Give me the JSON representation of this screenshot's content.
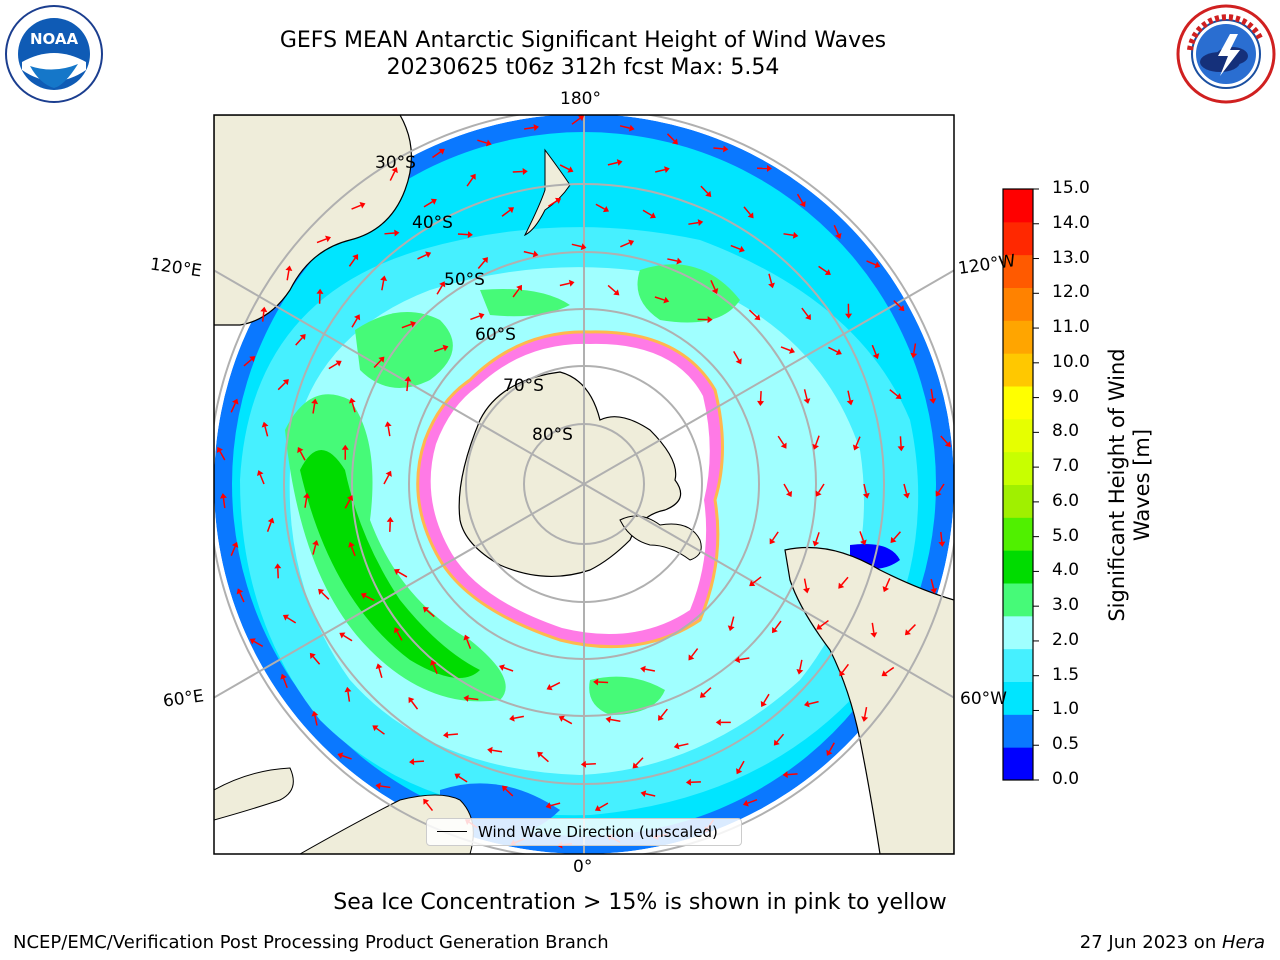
{
  "header": {
    "title_line1": "GEFS MEAN Antarctic Significant Height of Wind Waves",
    "title_line2": "20230625 t06z 312h fcst   Max: 5.54"
  },
  "logos": {
    "left": {
      "name": "noaa-logo",
      "text": "NOAA",
      "ring_text": "NATIONAL OCEANIC AND ATMOSPHERIC ADMINISTRATION · U.S. DEPARTMENT OF COMMERCE"
    },
    "right": {
      "name": "nws-logo",
      "ring_text": "NATIONAL WEATHER SERVICE"
    }
  },
  "map": {
    "projection": "south-polar-stereographic",
    "longitude_labels": [
      "180°",
      "120°E",
      "120°W",
      "60°E",
      "60°W",
      "0°"
    ],
    "latitude_labels": [
      "30°S",
      "40°S",
      "50°S",
      "60°S",
      "70°S",
      "80°S"
    ],
    "legend_label": "Wind Wave Direction (unscaled)",
    "arrow_color": "#ff0000",
    "land_color": "#efedda"
  },
  "colorbar": {
    "title": "Significant Height of Wind Waves [m]",
    "ticks": [
      "0.0",
      "0.5",
      "1.0",
      "1.5",
      "2.0",
      "3.0",
      "4.0",
      "5.0",
      "6.0",
      "7.0",
      "8.0",
      "9.0",
      "10.0",
      "11.0",
      "12.0",
      "13.0",
      "14.0",
      "15.0"
    ],
    "colors": [
      "#0000ff",
      "#0a78ff",
      "#00e5ff",
      "#46f0ff",
      "#a0ffff",
      "#46fa78",
      "#00dc00",
      "#50f000",
      "#a0f000",
      "#c8ff00",
      "#e6ff00",
      "#ffff00",
      "#ffc800",
      "#ffa500",
      "#ff8200",
      "#ff5a00",
      "#ff2800",
      "#ff0000"
    ]
  },
  "caption": "Sea Ice Concentration > 15% is shown in pink to yellow",
  "footer": {
    "left": "NCEP/EMC/Verification Post Processing Product Generation Branch",
    "right_prefix": "27 Jun 2023 on ",
    "right_system": "Hera"
  }
}
